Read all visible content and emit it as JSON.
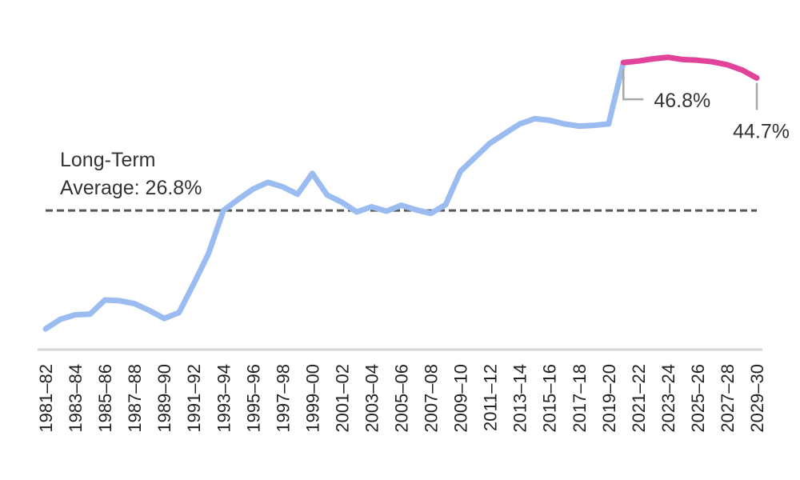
{
  "chart_data": {
    "type": "line",
    "title": "",
    "xlabel": "",
    "ylabel": "",
    "ylim": [
      8,
      52
    ],
    "grid": false,
    "x": [
      "1981–82",
      "1982–83",
      "1983–84",
      "1984–85",
      "1985–86",
      "1986–87",
      "1987–88",
      "1988–89",
      "1989–90",
      "1990–91",
      "1991–92",
      "1992–93",
      "1993–94",
      "1994–95",
      "1995–96",
      "1996–97",
      "1997–98",
      "1998–99",
      "1999–00",
      "2000–01",
      "2001–02",
      "2002–03",
      "2003–04",
      "2004–05",
      "2005–06",
      "2006–07",
      "2007–08",
      "2008–09",
      "2009–10",
      "2010–11",
      "2011–12",
      "2012–13",
      "2013–14",
      "2014–15",
      "2015–16",
      "2016–17",
      "2017–18",
      "2018–19",
      "2019–20",
      "2020–21",
      "2021–22",
      "2022–23",
      "2023–24",
      "2024–25",
      "2025–26",
      "2026–27",
      "2027–28",
      "2028–29",
      "2029–30"
    ],
    "tick_labels": [
      "1981–82",
      "1983–84",
      "1985–86",
      "1987–88",
      "1989–90",
      "1991–92",
      "1993–94",
      "1995–96",
      "1997–98",
      "1999–00",
      "2001–02",
      "2003–04",
      "2005–06",
      "2007–08",
      "2009–10",
      "2011–12",
      "2013–14",
      "2015–16",
      "2017–18",
      "2019–20",
      "2021–22",
      "2023–24",
      "2025–26",
      "2027–28",
      "2029–30"
    ],
    "series": [
      {
        "values": [
          10.8,
          12.1,
          12.7,
          12.8,
          14.7,
          14.6,
          14.2,
          13.3,
          12.2,
          13.0,
          16.9,
          21.0,
          26.8,
          28.3,
          29.7,
          30.6,
          30.0,
          29.0,
          31.8,
          28.9,
          27.9,
          26.6,
          27.3,
          26.7,
          27.5,
          26.9,
          26.4,
          27.6,
          32.1,
          34.0,
          35.9,
          37.2,
          38.5,
          39.2,
          39.0,
          38.5,
          38.2,
          38.3,
          38.5,
          46.8,
          null,
          null,
          null,
          null,
          null,
          null,
          null,
          null,
          null
        ],
        "color": "#9bbcf0"
      },
      {
        "values": [
          null,
          null,
          null,
          null,
          null,
          null,
          null,
          null,
          null,
          null,
          null,
          null,
          null,
          null,
          null,
          null,
          null,
          null,
          null,
          null,
          null,
          null,
          null,
          null,
          null,
          null,
          null,
          null,
          null,
          null,
          null,
          null,
          null,
          null,
          null,
          null,
          null,
          null,
          null,
          46.8,
          47.0,
          47.3,
          47.5,
          47.2,
          47.1,
          46.9,
          46.5,
          45.8,
          44.7
        ],
        "color": "#e2439a"
      }
    ],
    "reference_line": {
      "value": 26.8,
      "label_line1": "Long-Term",
      "label_line2": "Average: 26.8%",
      "color": "#555555"
    },
    "annotations": [
      {
        "text": "46.8%",
        "x_index": 39,
        "value": 46.8
      },
      {
        "text": "44.7%",
        "x_index": 48,
        "value": 44.7
      }
    ],
    "axis_color": "#d4d4d4",
    "leader_color": "#a8a8a8"
  }
}
